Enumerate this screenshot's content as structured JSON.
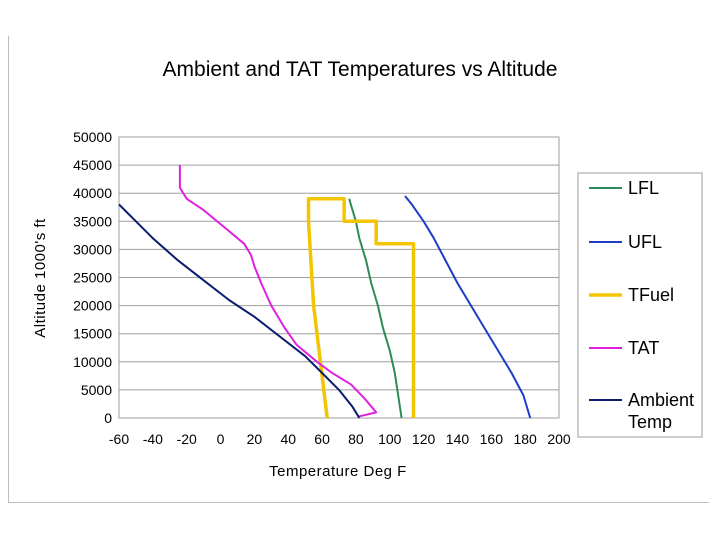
{
  "chart_data": {
    "type": "line",
    "title": "Ambient and TAT Temperatures vs Altitude",
    "xlabel": "Temperature Deg F",
    "ylabel": "Altitude 1000's ft",
    "xlim": [
      -60,
      200
    ],
    "ylim": [
      0,
      50000
    ],
    "x_ticks": [
      "-60",
      "-40",
      "-20",
      "0",
      "20",
      "40",
      "60",
      "80",
      "100",
      "120",
      "140",
      "160",
      "180",
      "200"
    ],
    "y_ticks": [
      "0",
      "5000",
      "10000",
      "15000",
      "20000",
      "25000",
      "30000",
      "35000",
      "40000",
      "45000",
      "50000"
    ],
    "grid": "horizontal",
    "legend_position": "right",
    "series": [
      {
        "name": "LFL",
        "color": "#2e8b57",
        "points": [
          [
            107,
            0
          ],
          [
            105,
            4000
          ],
          [
            103,
            8000
          ],
          [
            100,
            12000
          ],
          [
            96,
            16000
          ],
          [
            93,
            20000
          ],
          [
            89,
            24000
          ],
          [
            86,
            28000
          ],
          [
            82,
            32000
          ],
          [
            80,
            35000
          ],
          [
            77,
            38000
          ],
          [
            76,
            39000
          ]
        ]
      },
      {
        "name": "UFL",
        "color": "#1f3cc7",
        "points": [
          [
            183,
            0
          ],
          [
            179,
            4000
          ],
          [
            172,
            8000
          ],
          [
            164,
            12000
          ],
          [
            156,
            16000
          ],
          [
            148,
            20000
          ],
          [
            140,
            24000
          ],
          [
            133,
            28000
          ],
          [
            126,
            32000
          ],
          [
            120,
            35000
          ],
          [
            113,
            38000
          ],
          [
            109,
            39500
          ]
        ]
      },
      {
        "name": "TFuel",
        "color": "#f2c500",
        "points": [
          [
            63,
            0
          ],
          [
            61,
            5000
          ],
          [
            59,
            10000
          ],
          [
            57,
            15000
          ],
          [
            55,
            20000
          ],
          [
            54,
            25000
          ],
          [
            53,
            30000
          ],
          [
            52,
            35000
          ],
          [
            52,
            39000
          ],
          [
            73,
            39000
          ],
          [
            73,
            35000
          ],
          [
            92,
            35000
          ],
          [
            92,
            31000
          ],
          [
            114,
            31000
          ],
          [
            114,
            25000
          ],
          [
            114,
            15000
          ],
          [
            114,
            5000
          ],
          [
            114,
            0
          ]
        ]
      },
      {
        "name": "TAT",
        "color": "#e020e0",
        "points": [
          [
            -24,
            45000
          ],
          [
            -24,
            41000
          ],
          [
            -20,
            39000
          ],
          [
            -10,
            37000
          ],
          [
            2,
            34000
          ],
          [
            14,
            31000
          ],
          [
            18,
            29000
          ],
          [
            20,
            27000
          ],
          [
            24,
            24000
          ],
          [
            30,
            20000
          ],
          [
            38,
            16000
          ],
          [
            45,
            13000
          ],
          [
            57,
            10000
          ],
          [
            66,
            8000
          ],
          [
            77,
            6000
          ],
          [
            85,
            3500
          ],
          [
            92,
            1000
          ],
          [
            82,
            300
          ]
        ]
      },
      {
        "name": "Ambient Temp",
        "color": "#0a1a6e",
        "points": [
          [
            -60,
            38000
          ],
          [
            -50,
            35000
          ],
          [
            -40,
            32000
          ],
          [
            -25,
            28000
          ],
          [
            -10,
            24500
          ],
          [
            5,
            21000
          ],
          [
            20,
            18000
          ],
          [
            35,
            14500
          ],
          [
            50,
            11000
          ],
          [
            60,
            8000
          ],
          [
            70,
            5000
          ],
          [
            78,
            2000
          ],
          [
            82,
            0
          ]
        ]
      }
    ]
  }
}
